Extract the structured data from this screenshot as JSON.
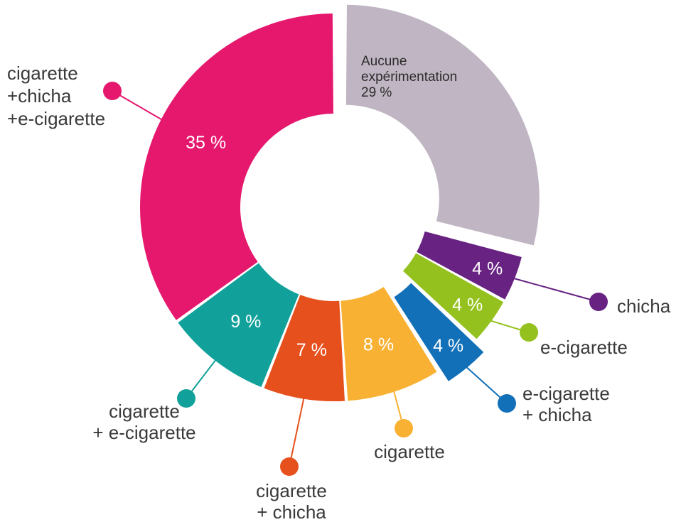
{
  "chart_data": {
    "type": "pie",
    "variant": "donut",
    "unit": "%",
    "slices": [
      {
        "key": "none",
        "label": "Aucune expérimentation",
        "value": 29,
        "value_label": "29 %",
        "color": "#c0b6c3",
        "exploded": true
      },
      {
        "key": "chicha",
        "label": "chicha",
        "value": 4,
        "value_label": "4 %",
        "color": "#672282",
        "exploded": false
      },
      {
        "key": "ecig",
        "label": "e-cigarette",
        "value": 4,
        "value_label": "4 %",
        "color": "#95c11f",
        "exploded": false
      },
      {
        "key": "ecig_chicha",
        "label": "e-cigarette + chicha",
        "value": 4,
        "value_label": "4 %",
        "color": "#1270b8",
        "exploded": true
      },
      {
        "key": "cig",
        "label": "cigarette",
        "value": 8,
        "value_label": "8 %",
        "color": "#f8b133",
        "exploded": false
      },
      {
        "key": "cig_chicha",
        "label": "cigarette + chicha",
        "value": 7,
        "value_label": "7 %",
        "color": "#e6501d",
        "exploded": false
      },
      {
        "key": "cig_ecig",
        "label": "cigarette + e-cigarette",
        "value": 9,
        "value_label": "9 %",
        "color": "#12a19a",
        "exploded": false
      },
      {
        "key": "all",
        "label": "cigarette +chicha +e-cigarette",
        "value": 35,
        "value_label": "35 %",
        "color": "#e5186e",
        "exploded": false
      }
    ],
    "legend_text": {
      "none": [
        "Aucune",
        "expérimentation",
        "29 %"
      ],
      "chicha": [
        "chicha"
      ],
      "ecig": [
        "e-cigarette"
      ],
      "ecig_chicha": [
        "e-cigarette",
        "+ chicha"
      ],
      "cig": [
        "cigarette"
      ],
      "cig_chicha": [
        "cigarette",
        "+ chicha"
      ],
      "cig_ecig": [
        "cigarette",
        "+ e-cigarette"
      ],
      "all": [
        "cigarette",
        "+chicha",
        "+e-cigarette"
      ]
    }
  }
}
